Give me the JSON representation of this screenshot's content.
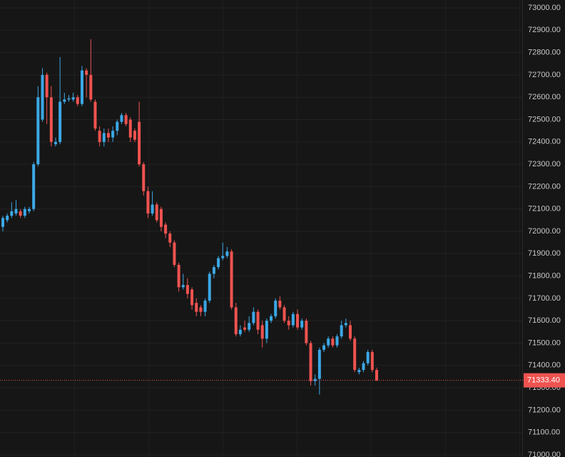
{
  "chart_data": {
    "type": "candlestick",
    "up_color": "#3ba8e6",
    "down_color": "#ef5350",
    "open": [
      72020,
      72050,
      72070,
      72080,
      72090,
      72070,
      72090,
      72100,
      72300,
      72500,
      72700,
      72600,
      72390,
      72400,
      72580,
      72590,
      72590,
      72600,
      72570,
      72720,
      72700,
      72580,
      72450,
      72400,
      72440,
      72420,
      72450,
      72490,
      72520,
      72500,
      72450,
      72490,
      72300,
      72180,
      72080,
      72120,
      72100,
      72030,
      71990,
      71950,
      71850,
      71750,
      71760,
      71740,
      71680,
      71660,
      71640,
      71690,
      71810,
      71840,
      71880,
      71890,
      71910,
      71660,
      71540,
      71570,
      71560,
      71590,
      71640,
      71580,
      71520,
      71600,
      71620,
      71690,
      71660,
      71600,
      71580,
      71630,
      71570,
      71600,
      71500,
      71330,
      71340,
      71470,
      71490,
      71520,
      71490,
      71530,
      71580,
      71580,
      71520,
      71370,
      71380,
      71410,
      71460,
      71380
    ],
    "high": [
      72070,
      72080,
      72130,
      72140,
      72100,
      72110,
      72110,
      72310,
      72650,
      72730,
      72710,
      72650,
      72420,
      72780,
      72620,
      72610,
      72620,
      72610,
      72740,
      72730,
      72860,
      72590,
      72470,
      72460,
      72460,
      72470,
      72500,
      72530,
      72530,
      72510,
      72460,
      72580,
      72310,
      72200,
      72180,
      72130,
      72110,
      72040,
      72000,
      71960,
      71860,
      71810,
      71790,
      71750,
      71700,
      71670,
      71700,
      71820,
      71850,
      71890,
      71950,
      71930,
      71920,
      71680,
      71580,
      71600,
      71620,
      71660,
      71650,
      71600,
      71610,
      71630,
      71700,
      71710,
      71670,
      71620,
      71640,
      71650,
      71610,
      71610,
      71510,
      71360,
      71480,
      71500,
      71530,
      71530,
      71540,
      71600,
      71610,
      71600,
      71530,
      71390,
      71420,
      71470,
      71470,
      71390
    ],
    "low": [
      72000,
      72040,
      72060,
      72070,
      72060,
      72060,
      72080,
      72090,
      72290,
      72490,
      72480,
      72380,
      72380,
      72390,
      72570,
      72580,
      72580,
      72560,
      72560,
      72600,
      72580,
      72450,
      72380,
      72380,
      72400,
      72400,
      72430,
      72480,
      72470,
      72400,
      72400,
      72290,
      72160,
      72060,
      72070,
      72040,
      72000,
      71970,
      71930,
      71840,
      71730,
      71740,
      71700,
      71650,
      71620,
      71620,
      71620,
      71680,
      71790,
      71830,
      71870,
      71880,
      71650,
      71530,
      71530,
      71550,
      71550,
      71580,
      71540,
      71480,
      71500,
      71590,
      71610,
      71650,
      71590,
      71560,
      71570,
      71560,
      71560,
      71490,
      71310,
      71310,
      71270,
      71460,
      71480,
      71480,
      71480,
      71520,
      71570,
      71510,
      71370,
      71360,
      71370,
      71400,
      71370,
      71330
    ],
    "close": [
      72060,
      72070,
      72090,
      72100,
      72070,
      72100,
      72100,
      72300,
      72600,
      72700,
      72600,
      72400,
      72400,
      72580,
      72590,
      72595,
      72600,
      72570,
      72720,
      72700,
      72590,
      72460,
      72400,
      72440,
      72420,
      72450,
      72490,
      72520,
      72480,
      72420,
      72410,
      72300,
      72180,
      72080,
      72120,
      72050,
      72020,
      71990,
      71950,
      71850,
      71750,
      71760,
      71720,
      71670,
      71640,
      71640,
      71690,
      71810,
      71840,
      71880,
      71890,
      71910,
      71660,
      71540,
      71560,
      71560,
      71590,
      71640,
      71560,
      71520,
      71600,
      71620,
      71690,
      71660,
      71600,
      71580,
      71630,
      71570,
      71600,
      71500,
      71330,
      71340,
      71470,
      71490,
      71520,
      71490,
      71530,
      71580,
      71590,
      71520,
      71380,
      71380,
      71410,
      71460,
      71380,
      71333.4
    ],
    "ylim": [
      71000,
      73000
    ],
    "yticks": [
      {
        "value": 71000,
        "label": "71000.00"
      },
      {
        "value": 71100,
        "label": "71100.00"
      },
      {
        "value": 71200,
        "label": "71200.00"
      },
      {
        "value": 71300,
        "label": "71300.00"
      },
      {
        "value": 71400,
        "label": "71400.00"
      },
      {
        "value": 71500,
        "label": "71500.00"
      },
      {
        "value": 71600,
        "label": "71600.00"
      },
      {
        "value": 71700,
        "label": "71700.00"
      },
      {
        "value": 71800,
        "label": "71800.00"
      },
      {
        "value": 71900,
        "label": "71900.00"
      },
      {
        "value": 72000,
        "label": "72000.00"
      },
      {
        "value": 72100,
        "label": "72100.00"
      },
      {
        "value": 72200,
        "label": "72200.00"
      },
      {
        "value": 72300,
        "label": "72300.00"
      },
      {
        "value": 72400,
        "label": "72400.00"
      },
      {
        "value": 72500,
        "label": "72500.00"
      },
      {
        "value": 72600,
        "label": "72600.00"
      },
      {
        "value": 72700,
        "label": "72700.00"
      },
      {
        "value": 72800,
        "label": "72800.00"
      },
      {
        "value": 72900,
        "label": "72900.00"
      },
      {
        "value": 73000,
        "label": "73000.00"
      }
    ],
    "grid": true,
    "last_price": 71333.4,
    "last_price_label": "71333.40"
  }
}
